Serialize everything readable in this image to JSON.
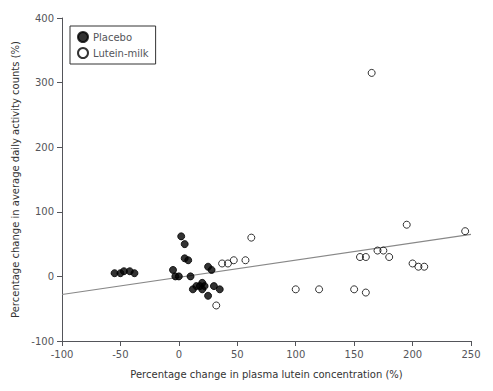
{
  "chart_data": {
    "type": "scatter",
    "xlabel": "Percentage change in plasma lutein concentration (%)",
    "ylabel": "Percentage change in average daily activity counts (%)",
    "series": [
      {
        "name": "Placebo",
        "type": "scatter",
        "color": "#000000",
        "marker": "filled",
        "x": [
          -55,
          -50,
          -47,
          -42,
          -38,
          -5,
          -3,
          0,
          2,
          5,
          5,
          8,
          10,
          12,
          15,
          18,
          20,
          20,
          22,
          25,
          25,
          28,
          30,
          35
        ],
        "values": [
          5,
          5,
          8,
          8,
          5,
          10,
          0,
          0,
          62,
          50,
          28,
          25,
          0,
          -20,
          -15,
          -15,
          -20,
          -10,
          -15,
          -30,
          15,
          10,
          -15,
          -20
        ]
      },
      {
        "name": "Lutein-milk",
        "type": "scatter",
        "color": "#000000",
        "marker": "hollow",
        "x": [
          32,
          37,
          42,
          47,
          57,
          62,
          100,
          120,
          150,
          155,
          160,
          160,
          165,
          170,
          175,
          180,
          195,
          200,
          205,
          210,
          245
        ],
        "values": [
          -45,
          20,
          20,
          25,
          25,
          60,
          -20,
          -20,
          -20,
          30,
          30,
          -25,
          315,
          40,
          40,
          30,
          80,
          20,
          15,
          15,
          70
        ]
      },
      {
        "type": "line",
        "color": "#888888",
        "x": [
          -100,
          250
        ],
        "values": [
          -28,
          65
        ]
      }
    ],
    "xlim": [
      -100,
      250
    ],
    "ylim": [
      -100,
      400
    ],
    "xticks": [
      -100,
      -50,
      0,
      50,
      100,
      150,
      200,
      250
    ],
    "yticks": [
      -100,
      0,
      100,
      200,
      300,
      400
    ],
    "grid": false,
    "legend": "upper left"
  }
}
